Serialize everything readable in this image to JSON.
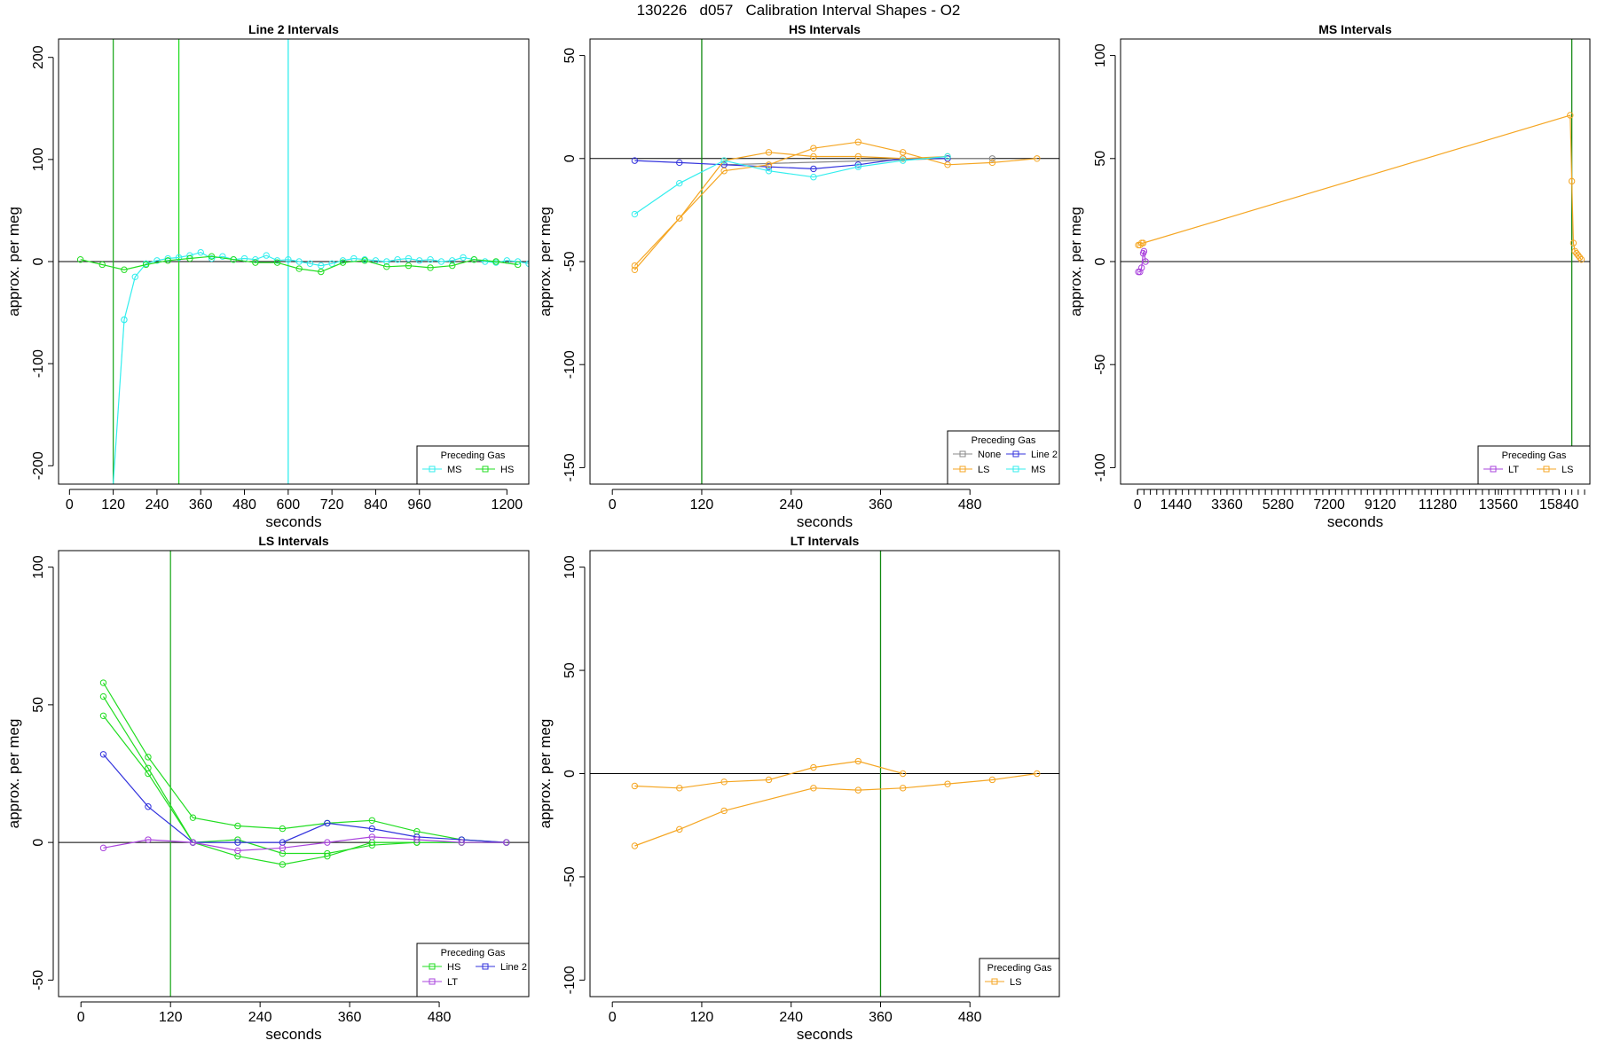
{
  "page_title": "130226   d057   Calibration Interval Shapes - O2",
  "chart_data": [
    {
      "type": "line",
      "title": "Line 2 Intervals",
      "xlabel": "seconds",
      "ylabel": "approx. per meg",
      "xlim": [
        -30,
        1260
      ],
      "ylim": [
        -218,
        218
      ],
      "xticks": [
        0,
        120,
        240,
        360,
        480,
        600,
        720,
        840,
        960,
        1200
      ],
      "yticks": [
        -200,
        -100,
        0,
        100,
        200
      ],
      "vlines": [
        {
          "x": 120,
          "color": "#22aa22"
        },
        {
          "x": 300,
          "color": "#22dd22"
        },
        {
          "x": 600,
          "color": "#33eeee"
        }
      ],
      "legend": {
        "title": "Preceding Gas",
        "position": "bottom-right",
        "cols": 2
      },
      "series": [
        {
          "name": "MS",
          "color": "#33eeee",
          "x": [
            150,
            180,
            210,
            240,
            270,
            300,
            330,
            360,
            390,
            420,
            450,
            480,
            510,
            540,
            570,
            600,
            630,
            660,
            690,
            720,
            750,
            780,
            810,
            840,
            870,
            900,
            930,
            960,
            990,
            1020,
            1050,
            1080,
            1110,
            1140,
            1170,
            1200,
            1230,
            1260
          ],
          "y": [
            -57,
            -15,
            -2,
            1,
            3,
            4,
            6,
            9,
            3,
            5,
            2,
            3,
            2,
            6,
            1,
            2,
            0,
            -2,
            -4,
            -2,
            1,
            3,
            2,
            1,
            0,
            2,
            3,
            1,
            2,
            0,
            1,
            4,
            2,
            0,
            -1,
            1,
            0,
            -2
          ]
        },
        {
          "name": "MS",
          "color": "#33eeee",
          "x": [
            120,
            150
          ],
          "y": [
            -218,
            -57
          ]
        },
        {
          "name": "HS",
          "color": "#22dd22",
          "x": [
            30,
            90,
            150,
            210,
            270,
            330,
            390,
            450,
            510,
            570,
            630,
            690,
            750,
            810,
            870,
            930,
            990,
            1050,
            1110,
            1170,
            1230
          ],
          "y": [
            2,
            -3,
            -8,
            -3,
            1,
            3,
            5,
            2,
            -1,
            -1,
            -7,
            -10,
            -1,
            1,
            -5,
            -4,
            -6,
            -4,
            2,
            0,
            -3
          ]
        }
      ]
    },
    {
      "type": "line",
      "title": "HS Intervals",
      "xlabel": "seconds",
      "ylabel": "approx. per meg",
      "xlim": [
        -30,
        600
      ],
      "ylim": [
        -158,
        58
      ],
      "xticks": [
        0,
        120,
        240,
        360,
        480
      ],
      "yticks": [
        -150,
        -100,
        -50,
        0,
        50
      ],
      "vlines": [
        {
          "x": 120,
          "color": "#118811"
        }
      ],
      "legend": {
        "title": "Preceding Gas",
        "position": "bottom-right",
        "cols": 2
      },
      "series": [
        {
          "name": "None",
          "color": "#888888",
          "x": [
            150,
            450,
            510
          ],
          "y": [
            -3,
            0,
            0
          ]
        },
        {
          "name": "Line 2",
          "color": "#3333dd",
          "x": [
            30,
            90,
            150,
            210,
            270,
            330,
            390,
            450
          ],
          "y": [
            -1,
            -2,
            -3,
            -4,
            -5,
            -3,
            0,
            0
          ]
        },
        {
          "name": "LS",
          "color": "#f5a623",
          "x": [
            30,
            90,
            150,
            210,
            270,
            330,
            390,
            450,
            510,
            570
          ],
          "y": [
            -52,
            -29,
            -6,
            -3,
            5,
            8,
            3,
            -3,
            -2,
            0
          ]
        },
        {
          "name": "LS",
          "color": "#f5a623",
          "x": [
            30,
            90,
            150,
            210,
            270,
            330,
            390,
            450
          ],
          "y": [
            -54,
            -29,
            -1,
            3,
            1,
            1,
            0,
            1
          ]
        },
        {
          "name": "MS",
          "color": "#33eeee",
          "x": [
            30,
            90,
            150,
            210,
            270,
            330,
            390,
            450
          ],
          "y": [
            -27,
            -12,
            -1,
            -6,
            -9,
            -4,
            -1,
            1
          ]
        }
      ]
    },
    {
      "type": "line",
      "title": "MS Intervals",
      "xlabel": "seconds",
      "ylabel": "approx. per meg",
      "xlim": [
        -640,
        17000
      ],
      "ylim": [
        -108,
        108
      ],
      "xticks": [
        0,
        1440,
        3360,
        5280,
        7200,
        9120,
        11280,
        13560,
        15840
      ],
      "xminor_step": 240,
      "yticks": [
        -100,
        -50,
        0,
        50,
        100
      ],
      "vlines": [
        {
          "x": 16320,
          "color": "#118811"
        }
      ],
      "legend": {
        "title": "Preceding Gas",
        "position": "bottom-right",
        "cols": 2
      },
      "series": [
        {
          "name": "LT",
          "color": "#aa44dd",
          "x": [
            30,
            90,
            150,
            210,
            240,
            300
          ],
          "y": [
            -5,
            -5,
            -3,
            4,
            5,
            0
          ]
        },
        {
          "name": "LS",
          "color": "#f5a623",
          "x": [
            30,
            90,
            150,
            210,
            16260,
            16320,
            16380,
            16440,
            16500,
            16560,
            16620,
            16680
          ],
          "y": [
            8,
            8,
            9,
            9,
            71,
            39,
            9,
            5,
            4,
            3,
            2,
            1
          ]
        }
      ]
    },
    {
      "type": "line",
      "title": "LS Intervals",
      "xlabel": "seconds",
      "ylabel": "approx. per meg",
      "xlim": [
        -30,
        600
      ],
      "ylim": [
        -56,
        106
      ],
      "xticks": [
        0,
        120,
        240,
        360,
        480
      ],
      "yticks": [
        -50,
        0,
        50,
        100
      ],
      "vlines": [
        {
          "x": 120,
          "color": "#22aa22"
        }
      ],
      "legend": {
        "title": "Preceding Gas",
        "position": "bottom-right",
        "cols": 2
      },
      "series": [
        {
          "name": "HS",
          "color": "#22dd22",
          "x": [
            30,
            90,
            150,
            210,
            270,
            330,
            390,
            450,
            510,
            570
          ],
          "y": [
            58,
            31,
            9,
            6,
            5,
            7,
            8,
            4,
            1,
            0
          ]
        },
        {
          "name": "HS",
          "color": "#22dd22",
          "x": [
            30,
            90,
            150,
            210,
            270,
            330,
            390,
            450,
            510,
            570
          ],
          "y": [
            53,
            27,
            0,
            -5,
            -8,
            -5,
            0,
            0,
            0,
            0
          ]
        },
        {
          "name": "HS",
          "color": "#22dd22",
          "x": [
            30,
            90,
            150,
            210,
            270,
            330,
            390,
            450,
            510,
            570
          ],
          "y": [
            46,
            25,
            0,
            1,
            -4,
            -4,
            -1,
            0,
            0,
            0
          ]
        },
        {
          "name": "Line 2",
          "color": "#3333dd",
          "x": [
            30,
            90,
            150,
            210,
            270,
            330,
            390,
            450,
            510,
            570
          ],
          "y": [
            32,
            13,
            0,
            0,
            0,
            7,
            5,
            2,
            1,
            0
          ]
        },
        {
          "name": "LT",
          "color": "#aa44dd",
          "x": [
            30,
            90,
            150,
            210,
            270,
            330,
            390,
            450,
            510,
            570
          ],
          "y": [
            -2,
            1,
            0,
            -3,
            -2,
            0,
            2,
            1,
            0,
            0
          ]
        }
      ]
    },
    {
      "type": "line",
      "title": "LT Intervals",
      "xlabel": "seconds",
      "ylabel": "approx. per meg",
      "xlim": [
        -30,
        600
      ],
      "ylim": [
        -108,
        108
      ],
      "xticks": [
        0,
        120,
        240,
        360,
        480
      ],
      "yticks": [
        -100,
        -50,
        0,
        50,
        100
      ],
      "vlines": [
        {
          "x": 360,
          "color": "#118811"
        }
      ],
      "legend": {
        "title": "Preceding Gas",
        "position": "bottom-right",
        "cols": 1
      },
      "series": [
        {
          "name": "LS",
          "color": "#f5a623",
          "x": [
            30,
            90,
            150,
            210,
            270,
            330,
            390
          ],
          "y": [
            -6,
            -7,
            -4,
            -3,
            3,
            6,
            0
          ]
        },
        {
          "name": "LS",
          "color": "#f5a623",
          "x": [
            30,
            90,
            150,
            270,
            330,
            390,
            450,
            510,
            570
          ],
          "y": [
            -35,
            -27,
            -18,
            -7,
            -8,
            -7,
            -5,
            -3,
            0
          ]
        }
      ]
    }
  ]
}
